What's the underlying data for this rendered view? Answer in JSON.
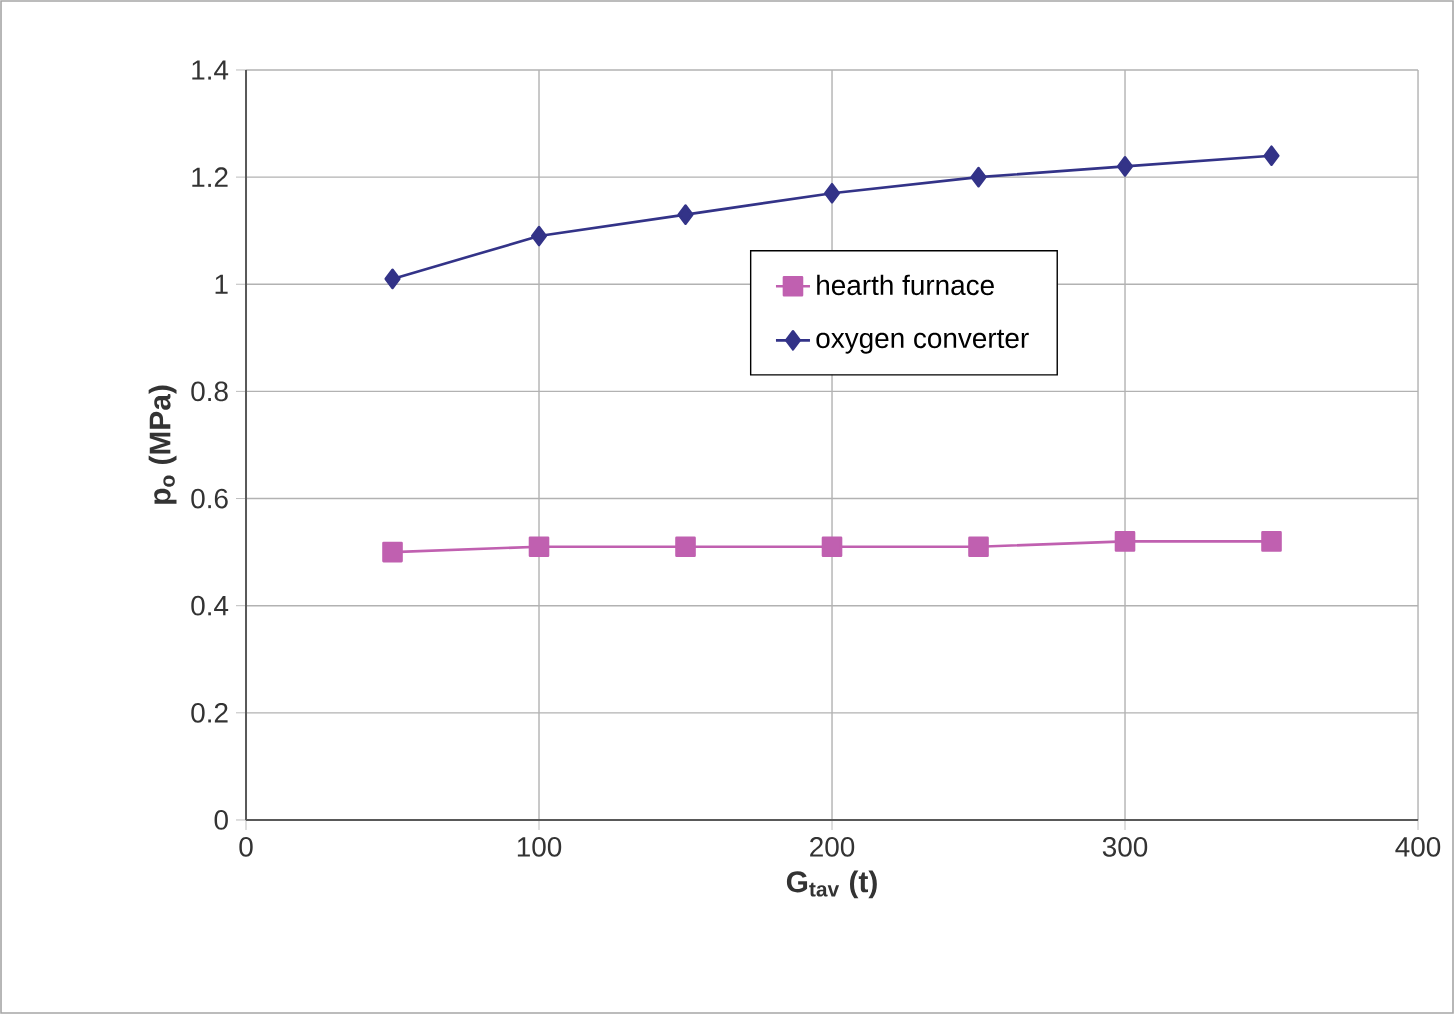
{
  "chart_data": {
    "type": "line",
    "xlabel": "G$_{tav}$ (t)",
    "ylabel": "p$_{o}$ (MPa)",
    "x": [
      50,
      100,
      150,
      200,
      250,
      300,
      350
    ],
    "series": [
      {
        "name": "hearth furnace",
        "color": "#c060b0",
        "marker": "square",
        "values": [
          0.5,
          0.51,
          0.51,
          0.51,
          0.51,
          0.52,
          0.52
        ]
      },
      {
        "name": "oxygen converter",
        "color": "#333388",
        "marker": "diamond",
        "values": [
          1.01,
          1.09,
          1.13,
          1.17,
          1.2,
          1.22,
          1.24
        ]
      }
    ],
    "xlim": [
      0,
      400
    ],
    "xticks": [
      0,
      100,
      200,
      300,
      400
    ],
    "ylim": [
      0,
      1.4
    ],
    "yticks": [
      0,
      0.2,
      0.4,
      0.6,
      0.8,
      1,
      1.2,
      1.4
    ],
    "grid": true,
    "legend": "right",
    "line_style": "solid"
  }
}
